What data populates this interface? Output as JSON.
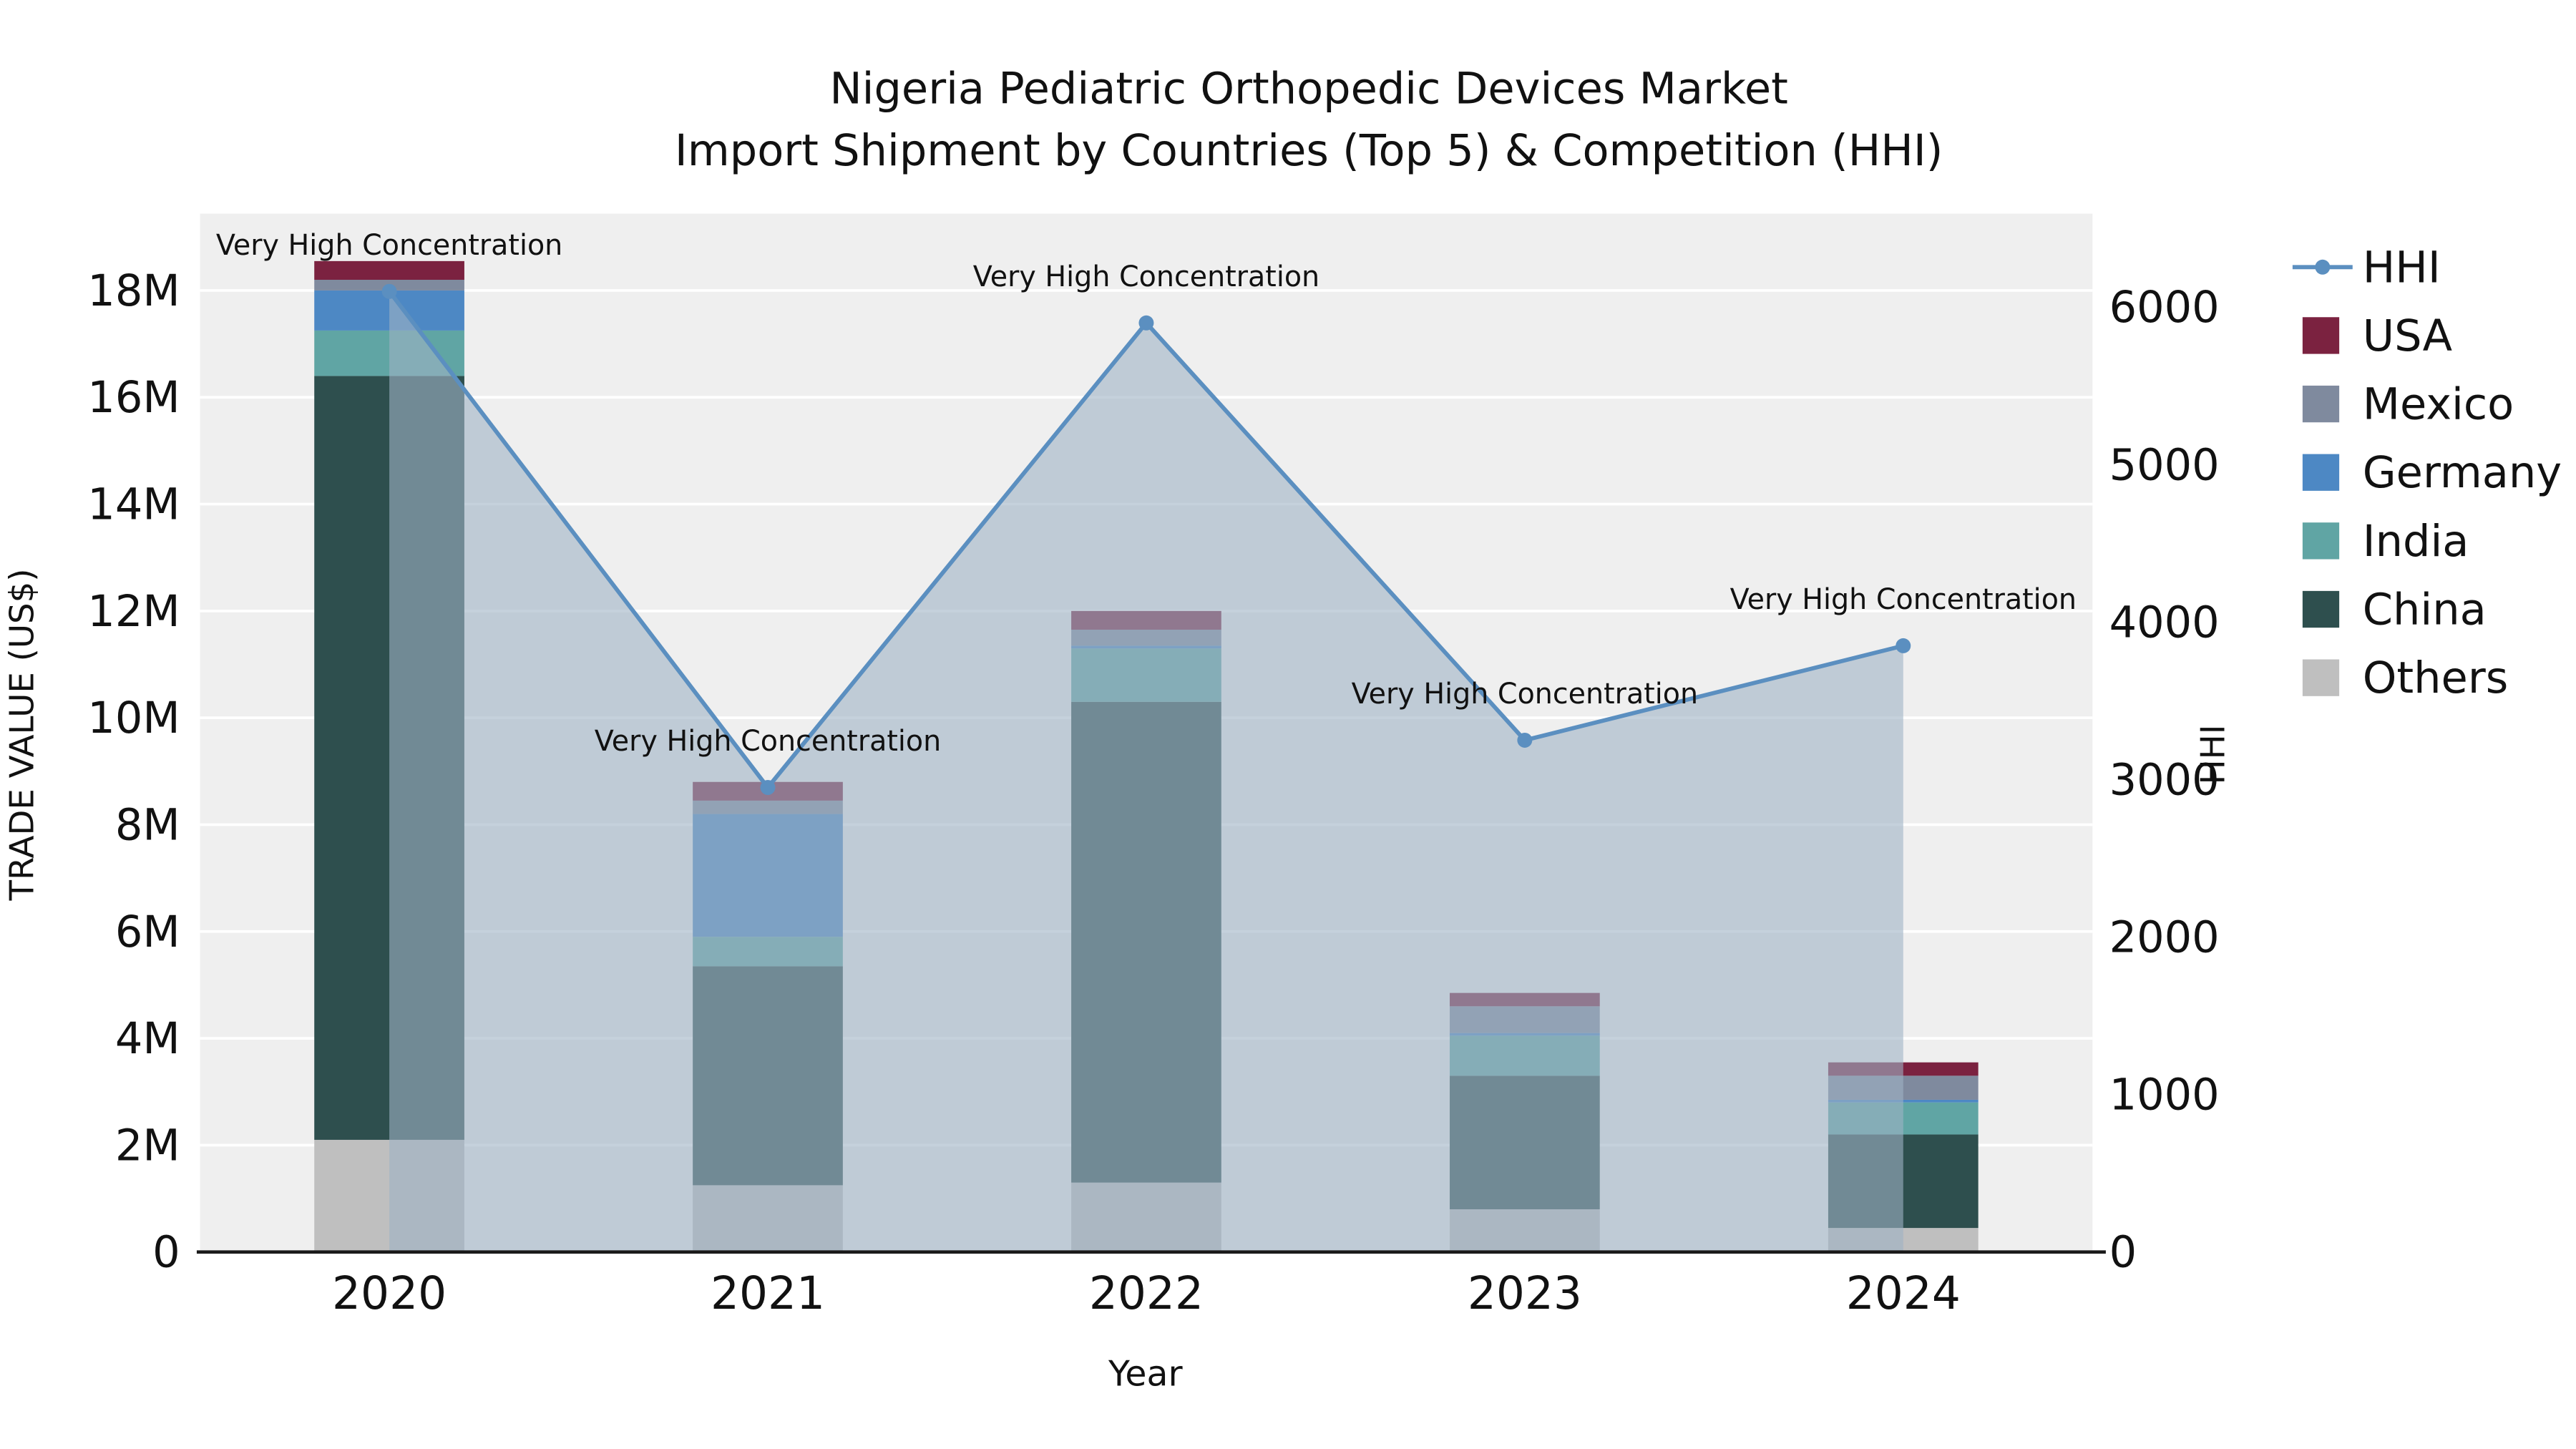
{
  "chart_data": {
    "type": "bar",
    "subtype": "stacked-bar-with-line",
    "title_line1": "Nigeria Pediatric Orthopedic Devices Market",
    "title_line2": "Import Shipment by Countries (Top 5) & Competition (HHI)",
    "xlabel": "Year",
    "ylabel_left": "TRADE VALUE (US$)",
    "ylabel_right": "HHI",
    "categories": [
      "2020",
      "2021",
      "2022",
      "2023",
      "2024"
    ],
    "bar_unit": "M US$",
    "bar_series": [
      {
        "name": "Others",
        "color": "#bfbfbf",
        "values_musd": [
          2.1,
          1.25,
          1.3,
          0.8,
          0.45
        ]
      },
      {
        "name": "China",
        "color": "#2e4f4e",
        "values_musd": [
          14.3,
          4.1,
          9.0,
          2.5,
          1.75
        ]
      },
      {
        "name": "India",
        "color": "#60a5a4",
        "values_musd": [
          0.85,
          0.55,
          1.0,
          0.75,
          0.6
        ]
      },
      {
        "name": "Germany",
        "color": "#4d88c4",
        "values_musd": [
          0.75,
          2.3,
          0.05,
          0.05,
          0.05
        ]
      },
      {
        "name": "Mexico",
        "color": "#7f8a9e",
        "values_musd": [
          0.2,
          0.25,
          0.3,
          0.5,
          0.45
        ]
      },
      {
        "name": "USA",
        "color": "#7b2240",
        "values_musd": [
          0.35,
          0.35,
          0.35,
          0.25,
          0.25
        ]
      }
    ],
    "line_series": {
      "name": "HHI",
      "color": "#5b8fc0",
      "area_fill": "#9fb2c4",
      "area_opacity": 0.6,
      "values": [
        6100,
        2950,
        5900,
        3250,
        3850
      ]
    },
    "annotations": [
      "Very High Concentration",
      "Very High Concentration",
      "Very High Concentration",
      "Very High Concentration",
      "Very High Concentration"
    ],
    "left_axis": {
      "min": 0,
      "max_musd": 18,
      "tick_step_musd": 2,
      "tick_labels": [
        "0",
        "2M",
        "4M",
        "6M",
        "8M",
        "10M",
        "12M",
        "14M",
        "16M",
        "18M"
      ]
    },
    "right_axis": {
      "min": 0,
      "max": 6000,
      "tick_step": 1000,
      "tick_labels": [
        "0",
        "1000",
        "2000",
        "3000",
        "4000",
        "5000",
        "6000"
      ]
    },
    "legend": {
      "items": [
        {
          "label": "HHI",
          "type": "line",
          "color": "#5b8fc0"
        },
        {
          "label": "USA",
          "type": "swatch",
          "color": "#7b2240"
        },
        {
          "label": "Mexico",
          "type": "swatch",
          "color": "#7f8a9e"
        },
        {
          "label": "Germany",
          "type": "swatch",
          "color": "#4d88c4"
        },
        {
          "label": "India",
          "type": "swatch",
          "color": "#60a5a4"
        },
        {
          "label": "China",
          "type": "swatch",
          "color": "#2e4f4e"
        },
        {
          "label": "Others",
          "type": "swatch",
          "color": "#bfbfbf"
        }
      ]
    },
    "plot_bg": "#efefef",
    "grid_color": "#ffffff",
    "axis_line_color": "#1a1a1a"
  }
}
